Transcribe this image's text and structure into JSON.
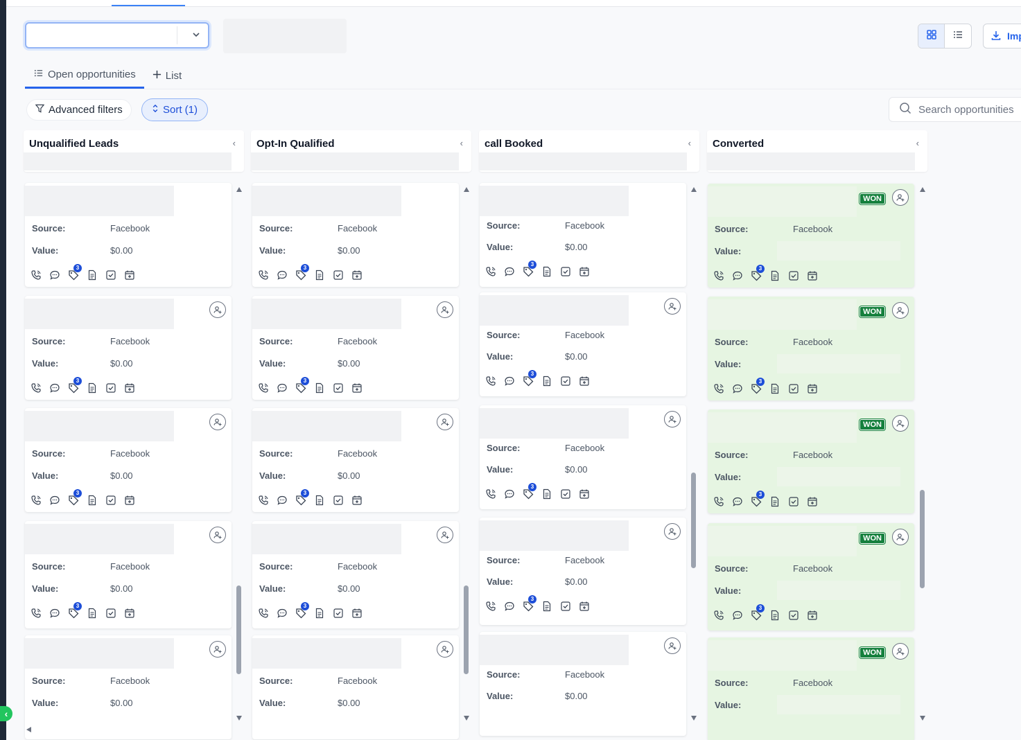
{
  "toolbar": {
    "pipeline_value": "",
    "import_label": "Imp",
    "search_placeholder": "Search opportunities"
  },
  "tabs": [
    {
      "label": "Open opportunities"
    },
    {
      "label": "List"
    }
  ],
  "filters": {
    "advanced_label": "Advanced filters",
    "sort_label": "Sort (1)"
  },
  "card_labels": {
    "source": "Source:",
    "value": "Value:",
    "won": "WON",
    "badge_count": "3"
  },
  "columns": [
    {
      "title": "Unqualified Leads",
      "cards": [
        {
          "source": "Facebook",
          "value": "$0.00"
        },
        {
          "source": "Facebook",
          "value": "$0.00"
        },
        {
          "source": "Facebook",
          "value": "$0.00"
        },
        {
          "source": "Facebook",
          "value": "$0.00"
        },
        {
          "source": "Facebook",
          "value": "$0.00"
        }
      ]
    },
    {
      "title": "Opt-In Qualified",
      "cards": [
        {
          "source": "Facebook",
          "value": "$0.00"
        },
        {
          "source": "Facebook",
          "value": "$0.00"
        },
        {
          "source": "Facebook",
          "value": "$0.00"
        },
        {
          "source": "Facebook",
          "value": "$0.00"
        },
        {
          "source": "Facebook",
          "value": "$0.00"
        }
      ]
    },
    {
      "title": "call Booked",
      "cards": [
        {
          "source": "Facebook",
          "value": "$0.00"
        },
        {
          "source": "Facebook",
          "value": "$0.00"
        },
        {
          "source": "Facebook",
          "value": "$0.00"
        },
        {
          "source": "Facebook",
          "value": "$0.00"
        },
        {
          "source": "Facebook",
          "value": "$0.00"
        }
      ]
    },
    {
      "title": "Converted",
      "cards": [
        {
          "source": "Facebook",
          "value": "",
          "status": "WON"
        },
        {
          "source": "Facebook",
          "value": "",
          "status": "WON"
        },
        {
          "source": "Facebook",
          "value": "",
          "status": "WON"
        },
        {
          "source": "Facebook",
          "value": "",
          "status": "WON"
        },
        {
          "source": "Facebook",
          "value": "",
          "status": "WON"
        }
      ]
    }
  ],
  "icons": [
    "phone-icon",
    "chat-icon",
    "tag-icon",
    "document-icon",
    "task-checkbox-icon",
    "calendar-icon",
    "user-assign-icon",
    "grid-view-icon",
    "list-view-icon",
    "download-icon",
    "search-icon",
    "filter-icon",
    "sort-icon",
    "chevron-down-icon",
    "chevron-left-icon",
    "plus-icon"
  ],
  "colors": {
    "accent": "#2563eb",
    "won_badge": "#15803d",
    "won_card_bg": "#e6f5e2",
    "notification_badge": "#1d4ed8"
  }
}
